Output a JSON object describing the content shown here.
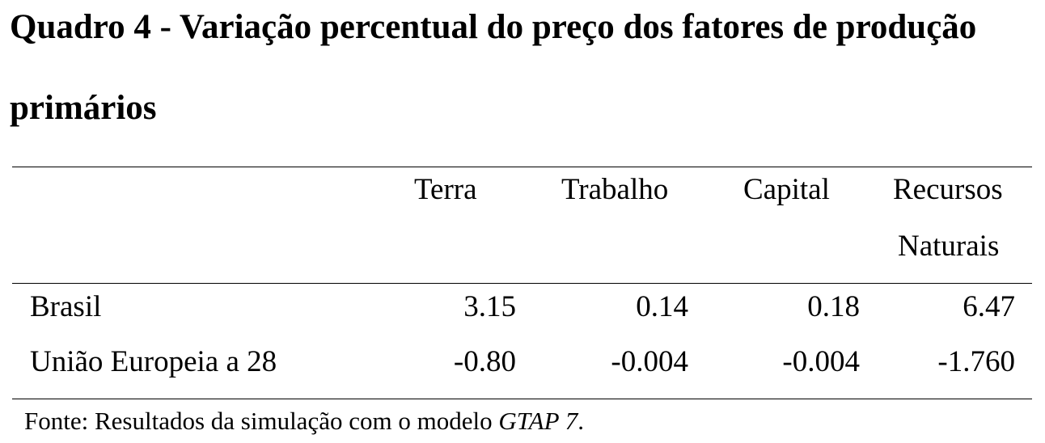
{
  "title_line1": "Quadro 4 - Variação percentual do preço dos fatores de produção",
  "title_line2": "primários",
  "columns": [
    "Terra",
    "Trabalho",
    "Capital",
    "Recursos",
    "Naturais"
  ],
  "rows": [
    {
      "label": "Brasil",
      "values": [
        "3.15",
        "0.14",
        "0.18",
        "6.47"
      ]
    },
    {
      "label": "União Europeia a 28",
      "values": [
        "-0.80",
        "-0.004",
        "-0.004",
        "-1.760"
      ]
    }
  ],
  "source_prefix": "Fonte: Resultados da simulação com o modelo ",
  "source_model": "GTAP 7",
  "source_suffix": "."
}
